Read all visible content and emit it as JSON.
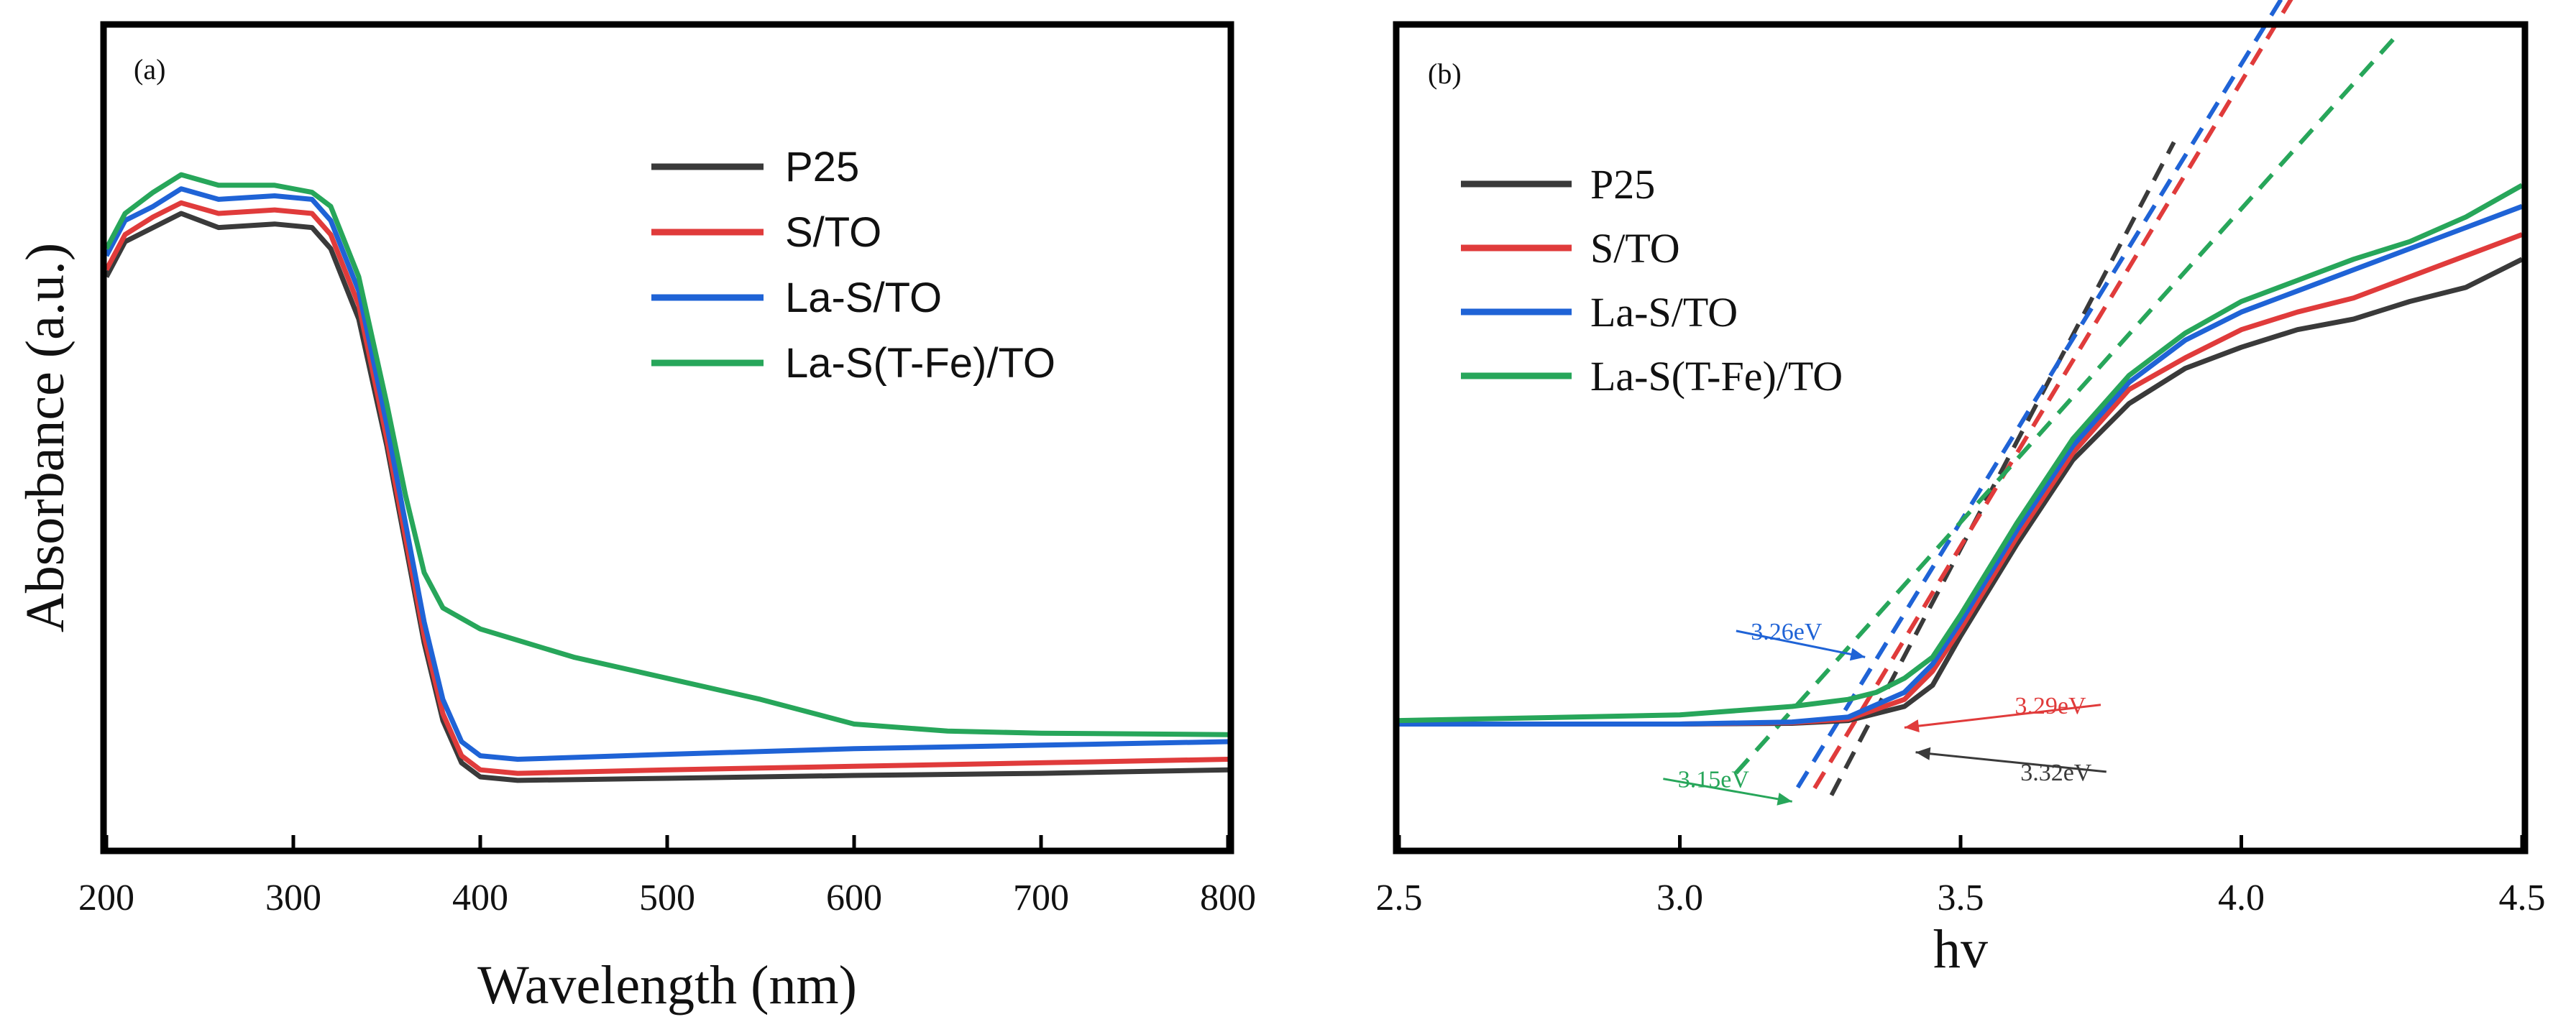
{
  "chart_data": [
    {
      "type": "line",
      "panel_label": "(a)",
      "xlabel": "Wavelength (nm)",
      "ylabel": "Absorbance (a.u.)",
      "xlim": [
        200,
        800
      ],
      "ylim": [
        0,
        1
      ],
      "x_ticks": [
        "200",
        "300",
        "400",
        "500",
        "600",
        "700",
        "800"
      ],
      "y_ticks_shown": false,
      "legend_position": "top-right",
      "series": [
        {
          "name": "P25",
          "color": "#3a3a3a",
          "points": [
            [
              200,
              0.76
            ],
            [
              210,
              0.81
            ],
            [
              225,
              0.83
            ],
            [
              240,
              0.85
            ],
            [
              260,
              0.83
            ],
            [
              290,
              0.835
            ],
            [
              310,
              0.83
            ],
            [
              320,
              0.8
            ],
            [
              335,
              0.7
            ],
            [
              350,
              0.52
            ],
            [
              360,
              0.38
            ],
            [
              370,
              0.24
            ],
            [
              380,
              0.13
            ],
            [
              390,
              0.07
            ],
            [
              400,
              0.05
            ],
            [
              420,
              0.045
            ],
            [
              500,
              0.048
            ],
            [
              600,
              0.052
            ],
            [
              700,
              0.055
            ],
            [
              800,
              0.06
            ]
          ]
        },
        {
          "name": "S/TO",
          "color": "#e03b3b",
          "points": [
            [
              200,
              0.77
            ],
            [
              210,
              0.82
            ],
            [
              225,
              0.845
            ],
            [
              240,
              0.865
            ],
            [
              260,
              0.85
            ],
            [
              290,
              0.855
            ],
            [
              310,
              0.85
            ],
            [
              320,
              0.82
            ],
            [
              335,
              0.72
            ],
            [
              350,
              0.53
            ],
            [
              360,
              0.39
            ],
            [
              370,
              0.25
            ],
            [
              380,
              0.14
            ],
            [
              390,
              0.08
            ],
            [
              400,
              0.06
            ],
            [
              420,
              0.055
            ],
            [
              500,
              0.06
            ],
            [
              600,
              0.065
            ],
            [
              700,
              0.07
            ],
            [
              800,
              0.075
            ]
          ]
        },
        {
          "name": "La-S/TO",
          "color": "#1f63d6",
          "points": [
            [
              200,
              0.79
            ],
            [
              210,
              0.84
            ],
            [
              225,
              0.86
            ],
            [
              240,
              0.885
            ],
            [
              260,
              0.87
            ],
            [
              290,
              0.875
            ],
            [
              310,
              0.87
            ],
            [
              320,
              0.84
            ],
            [
              335,
              0.74
            ],
            [
              350,
              0.55
            ],
            [
              360,
              0.41
            ],
            [
              370,
              0.27
            ],
            [
              380,
              0.16
            ],
            [
              390,
              0.1
            ],
            [
              400,
              0.08
            ],
            [
              420,
              0.075
            ],
            [
              500,
              0.082
            ],
            [
              600,
              0.09
            ],
            [
              700,
              0.095
            ],
            [
              800,
              0.1
            ]
          ]
        },
        {
          "name": "La-S(T-Fe)/TO",
          "color": "#27a65a",
          "points": [
            [
              200,
              0.8
            ],
            [
              210,
              0.85
            ],
            [
              225,
              0.88
            ],
            [
              240,
              0.905
            ],
            [
              260,
              0.89
            ],
            [
              290,
              0.89
            ],
            [
              310,
              0.88
            ],
            [
              320,
              0.86
            ],
            [
              335,
              0.76
            ],
            [
              350,
              0.58
            ],
            [
              360,
              0.45
            ],
            [
              370,
              0.34
            ],
            [
              380,
              0.29
            ],
            [
              400,
              0.26
            ],
            [
              450,
              0.22
            ],
            [
              500,
              0.19
            ],
            [
              550,
              0.16
            ],
            [
              600,
              0.125
            ],
            [
              650,
              0.115
            ],
            [
              700,
              0.112
            ],
            [
              800,
              0.11
            ]
          ]
        }
      ]
    },
    {
      "type": "line",
      "panel_label": "(b)",
      "xlabel": "hv",
      "ylabel": "",
      "xlim": [
        2.5,
        4.5
      ],
      "ylim": [
        0,
        1
      ],
      "x_ticks": [
        "2.5",
        "3.0",
        "3.5",
        "4.0",
        "4.5"
      ],
      "y_ticks_shown": false,
      "legend_position": "top-left",
      "series": [
        {
          "name": "P25",
          "color": "#3a3a3a",
          "points": [
            [
              2.5,
              0.125
            ],
            [
              3.0,
              0.125
            ],
            [
              3.2,
              0.126
            ],
            [
              3.3,
              0.13
            ],
            [
              3.4,
              0.15
            ],
            [
              3.45,
              0.18
            ],
            [
              3.5,
              0.25
            ],
            [
              3.6,
              0.38
            ],
            [
              3.7,
              0.5
            ],
            [
              3.8,
              0.58
            ],
            [
              3.9,
              0.63
            ],
            [
              4.0,
              0.66
            ],
            [
              4.1,
              0.685
            ],
            [
              4.2,
              0.7
            ],
            [
              4.3,
              0.725
            ],
            [
              4.4,
              0.745
            ],
            [
              4.5,
              0.785
            ]
          ]
        },
        {
          "name": "S/TO",
          "color": "#e03b3b",
          "points": [
            [
              2.5,
              0.125
            ],
            [
              3.0,
              0.125
            ],
            [
              3.2,
              0.127
            ],
            [
              3.3,
              0.132
            ],
            [
              3.4,
              0.16
            ],
            [
              3.45,
              0.2
            ],
            [
              3.5,
              0.26
            ],
            [
              3.6,
              0.39
            ],
            [
              3.7,
              0.51
            ],
            [
              3.8,
              0.6
            ],
            [
              3.9,
              0.645
            ],
            [
              4.0,
              0.685
            ],
            [
              4.1,
              0.71
            ],
            [
              4.2,
              0.73
            ],
            [
              4.3,
              0.76
            ],
            [
              4.4,
              0.79
            ],
            [
              4.5,
              0.82
            ]
          ]
        },
        {
          "name": "La-S/TO",
          "color": "#1f63d6",
          "points": [
            [
              2.5,
              0.125
            ],
            [
              3.0,
              0.125
            ],
            [
              3.2,
              0.128
            ],
            [
              3.3,
              0.135
            ],
            [
              3.4,
              0.17
            ],
            [
              3.45,
              0.21
            ],
            [
              3.5,
              0.27
            ],
            [
              3.6,
              0.4
            ],
            [
              3.7,
              0.52
            ],
            [
              3.8,
              0.61
            ],
            [
              3.9,
              0.67
            ],
            [
              4.0,
              0.71
            ],
            [
              4.1,
              0.74
            ],
            [
              4.2,
              0.77
            ],
            [
              4.3,
              0.8
            ],
            [
              4.4,
              0.83
            ],
            [
              4.5,
              0.86
            ]
          ]
        },
        {
          "name": "La-S(T-Fe)/TO",
          "color": "#27a65a",
          "points": [
            [
              2.5,
              0.13
            ],
            [
              3.0,
              0.138
            ],
            [
              3.2,
              0.15
            ],
            [
              3.3,
              0.16
            ],
            [
              3.35,
              0.17
            ],
            [
              3.4,
              0.19
            ],
            [
              3.45,
              0.22
            ],
            [
              3.5,
              0.28
            ],
            [
              3.6,
              0.41
            ],
            [
              3.7,
              0.53
            ],
            [
              3.8,
              0.62
            ],
            [
              3.9,
              0.68
            ],
            [
              4.0,
              0.725
            ],
            [
              4.1,
              0.755
            ],
            [
              4.2,
              0.785
            ],
            [
              4.3,
              0.81
            ],
            [
              4.4,
              0.845
            ],
            [
              4.5,
              0.89
            ]
          ]
        }
      ],
      "tangent_lines": [
        {
          "color": "#3a3a3a",
          "intercept_ev": 3.32,
          "slope": 1.52,
          "x_end": 3.88
        },
        {
          "color": "#e03b3b",
          "intercept_ev": 3.29,
          "slope": 1.32,
          "x_end": 4.2
        },
        {
          "color": "#1f63d6",
          "intercept_ev": 3.26,
          "slope": 1.3,
          "x_end": 4.2
        },
        {
          "color": "#27a65a",
          "intercept_ev": 3.15,
          "slope": 0.89,
          "x_end": 4.28
        }
      ],
      "annotations": [
        {
          "text": "3.26eV",
          "color": "#1f63d6",
          "text_x": 3.19,
          "text_y": 0.245,
          "arrow_to": [
            3.33,
            0.22
          ]
        },
        {
          "text": "3.29eV",
          "color": "#e03b3b",
          "text_x": 3.66,
          "text_y": 0.14,
          "arrow_to": [
            3.4,
            0.12
          ]
        },
        {
          "text": "3.32eV",
          "color": "#3a3a3a",
          "text_x": 3.67,
          "text_y": 0.045,
          "arrow_to": [
            3.42,
            0.085
          ]
        },
        {
          "text": "3.15eV",
          "color": "#27a65a",
          "text_x": 3.06,
          "text_y": 0.035,
          "arrow_to": [
            3.2,
            0.015
          ]
        }
      ]
    }
  ]
}
